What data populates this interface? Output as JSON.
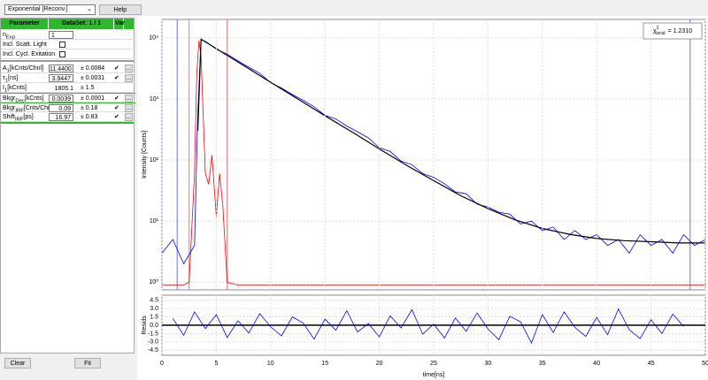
{
  "toolbar": {
    "model": "Exponential [Reconv.]",
    "help": "Help"
  },
  "panel": {
    "header": [
      "Parameter",
      "DataSet: 1 / 1",
      "Var"
    ],
    "nexp": {
      "label": "n",
      "sub": "Exp",
      "value": "1"
    },
    "checks": [
      "Incl. Scatt. Light",
      "Incl. Cycl. Exitation"
    ],
    "rows": [
      {
        "label": "A",
        "sub": "1",
        "unit": "[kCnts/Chnl]",
        "value": "11.4400",
        "err": "± 0.0084",
        "check": true,
        "btn": "..."
      },
      {
        "label": "τ",
        "sub": "1",
        "unit": "[ns]",
        "value": "3.9447",
        "err": "± 0.0031",
        "check": true,
        "btn": "..."
      },
      {
        "label": "I",
        "sub": "1",
        "unit": "[kCnts]",
        "value": "1805.1",
        "err": "± 1.5"
      },
      {
        "label": "Bkgr",
        "sub": "Dec",
        "unit": "[kCnts]",
        "value": "0.0039",
        "err": "± 0.0001",
        "check": true,
        "btn": "..."
      },
      {
        "label": "Bkgr",
        "sub": "IRF",
        "unit": "[Cnts/Chnl]",
        "value": "0.09",
        "err": "± 0.18",
        "check": true,
        "btn": "..."
      },
      {
        "label": "Shift",
        "sub": "IRF",
        "unit": "[ps]",
        "value": "16.97",
        "err": "± 0.83",
        "check": true,
        "btn": "..."
      }
    ],
    "buttons": [
      "Clear",
      "Fit"
    ]
  },
  "chart_data": [
    {
      "type": "line",
      "y_label": "Intensity [Counts]",
      "log_y": true,
      "grid": true,
      "ylim": [
        0.75,
        20000
      ],
      "yticks": [
        {
          "value": 1,
          "label": "10⁰"
        },
        {
          "value": 10,
          "label": "10¹"
        },
        {
          "value": 100,
          "label": "10²"
        },
        {
          "value": 1000,
          "label": "10³"
        },
        {
          "value": 10000,
          "label": "10⁴"
        }
      ],
      "xlim": [
        0,
        50
      ],
      "chi": {
        "symbol": "χ",
        "sup": "2",
        "sub": "local",
        "text": "= 1.2310"
      },
      "cursors": [
        {
          "x": 1.4,
          "color": "#6f6fff"
        },
        {
          "x": 2.5,
          "color": "#ff6f6f"
        },
        {
          "x": 6.0,
          "color": "#ff6f6f"
        },
        {
          "x": 48.6,
          "color": "#6f6fff"
        }
      ],
      "series": [
        {
          "color": "#ff0000",
          "x": [
            0,
            2,
            2.5,
            3,
            3.2,
            3.4,
            3.6,
            3.8,
            4,
            4.3,
            4.6,
            5,
            5.3,
            5.6,
            6,
            7,
            10,
            20,
            30,
            40,
            50
          ],
          "values": [
            0.9,
            0.9,
            1,
            60,
            2500,
            9000,
            5000,
            500,
            60,
            40,
            120,
            12,
            60,
            18,
            1,
            0.9,
            0.9,
            0.9,
            0.9,
            0.9,
            0.9
          ]
        },
        {
          "color": "#0000ff",
          "x": [
            0,
            1,
            2,
            3,
            3.3,
            3.6,
            4,
            5,
            6,
            7,
            8,
            9,
            10,
            11,
            12,
            13,
            14,
            15,
            16,
            17,
            18,
            19,
            20,
            21,
            22,
            23,
            24,
            25,
            26,
            27,
            28,
            29,
            30,
            31,
            32,
            33,
            34,
            35,
            36,
            37,
            38,
            39,
            40,
            41,
            42,
            43,
            44,
            45,
            46,
            47,
            48,
            49,
            50
          ],
          "values": [
            3,
            5,
            2,
            4,
            600,
            9300,
            8800,
            6500,
            5400,
            4180,
            3300,
            2630,
            1850,
            1510,
            1180,
            950,
            745,
            540,
            470,
            360,
            290,
            230,
            160,
            138,
            96,
            84,
            60,
            52,
            41,
            30,
            28,
            19,
            17,
            14,
            13,
            9,
            10,
            7,
            8,
            5,
            7,
            5,
            6,
            4,
            5,
            3,
            6,
            4,
            5,
            3,
            6,
            4,
            5
          ]
        },
        {
          "color": "#000000",
          "x": [
            3.3,
            3.6,
            5,
            7.5,
            10,
            12.5,
            15,
            17.5,
            20,
            22.5,
            25,
            27.5,
            30,
            32.5,
            35,
            37.5,
            40,
            42.5,
            45,
            47.5,
            50
          ],
          "values": [
            300,
            9500,
            6660,
            3534,
            1876,
            997,
            531,
            287,
            152,
            82,
            46,
            26,
            16,
            10.5,
            7.6,
            6.1,
            5.2,
            4.8,
            4.6,
            4.4,
            4.4
          ]
        }
      ]
    },
    {
      "type": "line",
      "y_label": "Resids",
      "x_label": "time[ns]",
      "grid": true,
      "xlim": [
        0,
        50
      ],
      "ylim": [
        -5.4,
        5.4
      ],
      "yticks": [
        4.5,
        {
          "value": 3,
          "label": "3.0"
        },
        1.5,
        {
          "value": 0,
          "label": "0.0"
        },
        -1.5,
        {
          "value": -3,
          "label": "-3.0"
        },
        -4.5
      ],
      "xticks": [
        0,
        5,
        10,
        15,
        20,
        25,
        30,
        35,
        40,
        45,
        50
      ],
      "series": [
        {
          "color": "#0000ff",
          "x": [
            1,
            2,
            3,
            4,
            5,
            6,
            7,
            8,
            9,
            10,
            11,
            12,
            13,
            14,
            15,
            16,
            17,
            18,
            19,
            20,
            21,
            22,
            23,
            24,
            25,
            26,
            27,
            28,
            29,
            30,
            31,
            32,
            33,
            34,
            35,
            36,
            37,
            38,
            39,
            40,
            41,
            42,
            43,
            44,
            45,
            46,
            47,
            48
          ],
          "values": [
            1.2,
            -1.8,
            2.4,
            -0.6,
            1.9,
            -2.2,
            0.8,
            -1.4,
            2.1,
            -0.3,
            -1.9,
            1.5,
            0.4,
            -2.5,
            1.1,
            -0.9,
            2.6,
            -1.2,
            0.3,
            -2.1,
            1.7,
            -0.5,
            2.8,
            -1.6,
            0.2,
            -2.3,
            1.3,
            -1.1,
            2.2,
            -0.7,
            -2.6,
            1.6,
            0.6,
            -3.2,
            1.9,
            -1.3,
            2.4,
            -0.4,
            -2.0,
            1.4,
            -1.7,
            2.9,
            -0.8,
            -2.4,
            1.0,
            -1.5,
            2.0,
            -0.2
          ]
        }
      ]
    }
  ]
}
